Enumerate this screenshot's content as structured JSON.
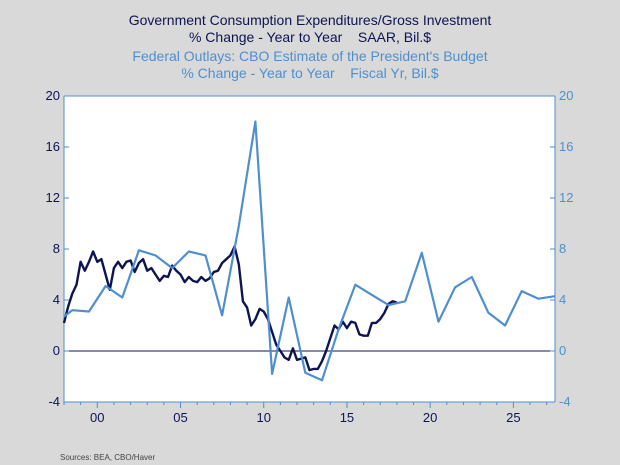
{
  "titles": {
    "series1_line1": "Government Consumption Expenditures/Gross Investment",
    "series1_line2": "% Change - Year to Year    SAAR, Bil.$",
    "series2_line1": "Federal Outlays: CBO Estimate of the President's Budget",
    "series2_line2": "% Change - Year to Year    Fiscal Yr, Bil.$"
  },
  "source": "Sources:  BEA, CBO/Haver",
  "colors": {
    "background": "#d9d9d9",
    "plot_background": "#ffffff",
    "series1": "#0d1452",
    "series2": "#4f8fd0",
    "axis": "#4f8fd0",
    "zero_line": "#0d1452"
  },
  "chart_data": {
    "type": "line",
    "x_range": [
      1998.0,
      2027.5
    ],
    "x_ticks": [
      {
        "value": 2000,
        "label": "00"
      },
      {
        "value": 2005,
        "label": "05"
      },
      {
        "value": 2010,
        "label": "10"
      },
      {
        "value": 2015,
        "label": "15"
      },
      {
        "value": 2020,
        "label": "20"
      },
      {
        "value": 2025,
        "label": "25"
      }
    ],
    "y_left": {
      "range": [
        -4,
        20
      ],
      "ticks": [
        -4,
        0,
        4,
        8,
        12,
        16,
        20
      ]
    },
    "y_right": {
      "range": [
        -4,
        20
      ],
      "ticks": [
        -4,
        0,
        4,
        8,
        12,
        16,
        20
      ]
    },
    "grid": false,
    "series": [
      {
        "name": "Government Consumption Expenditures/Gross Investment",
        "axis": "left",
        "x": [
          1998.0,
          1998.25,
          1998.5,
          1998.75,
          1999.0,
          1999.25,
          1999.5,
          1999.75,
          2000.0,
          2000.25,
          2000.5,
          2000.75,
          2001.0,
          2001.25,
          2001.5,
          2001.75,
          2002.0,
          2002.25,
          2002.5,
          2002.75,
          2003.0,
          2003.25,
          2003.5,
          2003.75,
          2004.0,
          2004.25,
          2004.5,
          2004.75,
          2005.0,
          2005.25,
          2005.5,
          2005.75,
          2006.0,
          2006.25,
          2006.5,
          2006.75,
          2007.0,
          2007.25,
          2007.5,
          2007.75,
          2008.0,
          2008.25,
          2008.5,
          2008.75,
          2009.0,
          2009.25,
          2009.5,
          2009.75,
          2010.0,
          2010.25,
          2010.5,
          2010.75,
          2011.0,
          2011.25,
          2011.5,
          2011.75,
          2012.0,
          2012.25,
          2012.5,
          2012.75,
          2013.0,
          2013.25,
          2013.5,
          2013.75,
          2014.0,
          2014.25,
          2014.5,
          2014.75,
          2015.0,
          2015.25,
          2015.5,
          2015.75,
          2016.0,
          2016.25,
          2016.5,
          2016.75,
          2017.0,
          2017.25,
          2017.5,
          2017.75,
          2018.0
        ],
        "y": [
          2.2,
          3.5,
          4.5,
          5.2,
          7.0,
          6.3,
          7.0,
          7.8,
          7.0,
          7.2,
          6.0,
          4.8,
          6.5,
          7.0,
          6.5,
          7.0,
          7.1,
          6.2,
          6.9,
          7.2,
          6.3,
          6.5,
          6.0,
          5.5,
          5.9,
          5.8,
          6.7,
          6.3,
          6.0,
          5.4,
          5.8,
          5.5,
          5.4,
          5.8,
          5.5,
          5.7,
          6.2,
          6.3,
          6.9,
          7.2,
          7.5,
          8.2,
          6.8,
          3.9,
          3.4,
          2.0,
          2.5,
          3.3,
          3.1,
          2.5,
          1.5,
          0.5,
          0.0,
          -0.5,
          -0.7,
          0.2,
          -0.7,
          -0.6,
          -0.5,
          -1.5,
          -1.4,
          -1.4,
          -0.8,
          0.0,
          1.0,
          2.0,
          1.7,
          2.3,
          1.8,
          2.3,
          2.2,
          1.3,
          1.2,
          1.2,
          2.2,
          2.2,
          2.5,
          3.0,
          3.7,
          3.9,
          3.8
        ]
      },
      {
        "name": "Federal Outlays: CBO Estimate of the President's Budget",
        "axis": "right",
        "x": [
          1998.0,
          1998.5,
          1999.5,
          2000.5,
          2001.5,
          2002.5,
          2003.5,
          2004.5,
          2005.5,
          2006.5,
          2007.5,
          2008.5,
          2009.5,
          2010.5,
          2011.5,
          2012.5,
          2013.5,
          2014.5,
          2015.5,
          2016.5,
          2017.5,
          2018.5,
          2019.5,
          2020.5,
          2021.5,
          2022.5,
          2023.5,
          2024.5,
          2025.5,
          2026.5,
          2027.5
        ],
        "y": [
          2.7,
          3.2,
          3.1,
          5.1,
          4.2,
          7.9,
          7.5,
          6.5,
          7.8,
          7.5,
          2.8,
          9.8,
          18.0,
          -1.8,
          4.2,
          -1.7,
          -2.3,
          1.7,
          5.2,
          4.4,
          3.6,
          3.9,
          7.7,
          2.3,
          5.0,
          5.8,
          3.0,
          2.0,
          4.7,
          4.1,
          4.3
        ]
      }
    ]
  }
}
